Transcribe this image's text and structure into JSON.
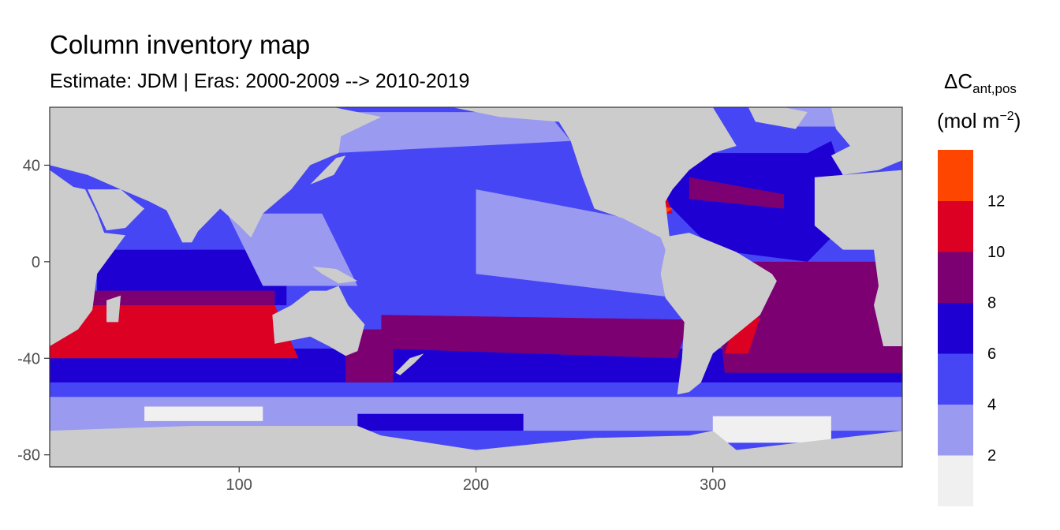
{
  "title": "Column inventory map",
  "subtitle": "Estimate: JDM  | Eras: 2000-2009 --> 2010-2019",
  "colors": {
    "land": "#cccccc",
    "panel_border": "#333333",
    "tick": "#4d4d4d",
    "bins": [
      "#f0f0f0",
      "#9a9af0",
      "#4646f5",
      "#1e00d2",
      "#7d0073",
      "#dc0023",
      "#ff4600"
    ]
  },
  "chart_data": {
    "type": "heatmap",
    "title": "Column inventory map",
    "subtitle": "Estimate: JDM  | Eras: 2000-2009 --> 2010-2019",
    "xlabel": "",
    "ylabel": "",
    "xlim": [
      20,
      380
    ],
    "ylim": [
      -85,
      64
    ],
    "x_ticks": [
      100,
      200,
      300
    ],
    "y_ticks": [
      40,
      0,
      -40,
      -80
    ],
    "legend": {
      "title_main": "ΔC",
      "title_sub": "ant,pos",
      "title_units": "(mol m",
      "title_units_exp": "−2",
      "title_units_close": ")",
      "position": "right",
      "breaks": [
        2,
        4,
        6,
        8,
        10,
        12
      ],
      "bins": [
        {
          "range": [
            0,
            2
          ],
          "color": "#f0f0f0"
        },
        {
          "range": [
            2,
            4
          ],
          "color": "#9a9af0"
        },
        {
          "range": [
            4,
            6
          ],
          "color": "#4646f5"
        },
        {
          "range": [
            6,
            8
          ],
          "color": "#1e00d2"
        },
        {
          "range": [
            8,
            10
          ],
          "color": "#7d0073"
        },
        {
          "range": [
            10,
            12
          ],
          "color": "#dc0023"
        },
        {
          "range": [
            12,
            14
          ],
          "color": "#ff4600"
        }
      ]
    },
    "regions": [
      {
        "name": "southern-ocean-low",
        "bin": 1,
        "pts": [
          [
            20,
            -52
          ],
          [
            380,
            -52
          ],
          [
            380,
            -70
          ],
          [
            20,
            -70
          ]
        ]
      },
      {
        "name": "antarctic-shelf-min",
        "bin": 0,
        "pts": [
          [
            60,
            -60
          ],
          [
            110,
            -60
          ],
          [
            110,
            -66
          ],
          [
            60,
            -66
          ]
        ]
      },
      {
        "name": "weddell-min",
        "bin": 0,
        "pts": [
          [
            300,
            -64
          ],
          [
            350,
            -64
          ],
          [
            350,
            -75
          ],
          [
            300,
            -75
          ]
        ]
      },
      {
        "name": "ross-sea-band",
        "bin": 3,
        "pts": [
          [
            150,
            -63
          ],
          [
            220,
            -63
          ],
          [
            220,
            -70
          ],
          [
            150,
            -70
          ]
        ]
      },
      {
        "name": "southern-ocean-mid",
        "bin": 2,
        "pts": [
          [
            20,
            -42
          ],
          [
            380,
            -42
          ],
          [
            380,
            -56
          ],
          [
            20,
            -56
          ]
        ]
      },
      {
        "name": "acc-band",
        "bin": 3,
        "pts": [
          [
            20,
            -36
          ],
          [
            380,
            -36
          ],
          [
            380,
            -50
          ],
          [
            20,
            -50
          ]
        ]
      },
      {
        "name": "south-pacific-high",
        "bin": 4,
        "pts": [
          [
            160,
            -22
          ],
          [
            290,
            -24
          ],
          [
            285,
            -40
          ],
          [
            160,
            -36
          ]
        ]
      },
      {
        "name": "tasman-high",
        "bin": 4,
        "pts": [
          [
            145,
            -28
          ],
          [
            165,
            -28
          ],
          [
            165,
            -50
          ],
          [
            145,
            -50
          ]
        ]
      },
      {
        "name": "south-atlantic-high",
        "bin": 4,
        "pts": [
          [
            300,
            0
          ],
          [
            380,
            0
          ],
          [
            380,
            -46
          ],
          [
            305,
            -46
          ]
        ]
      },
      {
        "name": "brazil-current-red",
        "bin": 5,
        "pts": [
          [
            310,
            -23
          ],
          [
            320,
            -23
          ],
          [
            315,
            -38
          ],
          [
            305,
            -38
          ]
        ]
      },
      {
        "name": "indian-ocean-deep",
        "bin": 3,
        "pts": [
          [
            40,
            5
          ],
          [
            120,
            5
          ],
          [
            120,
            -18
          ],
          [
            40,
            -18
          ]
        ]
      },
      {
        "name": "arabian-sea",
        "bin": 2,
        "pts": [
          [
            45,
            25
          ],
          [
            80,
            25
          ],
          [
            80,
            5
          ],
          [
            45,
            5
          ]
        ]
      },
      {
        "name": "indian-ocean-purple",
        "bin": 4,
        "pts": [
          [
            20,
            -12
          ],
          [
            115,
            -12
          ],
          [
            115,
            -32
          ],
          [
            20,
            -32
          ]
        ]
      },
      {
        "name": "indian-ocean-red",
        "bin": 5,
        "pts": [
          [
            20,
            -18
          ],
          [
            115,
            -18
          ],
          [
            125,
            -40
          ],
          [
            20,
            -40
          ]
        ]
      },
      {
        "name": "red-sea",
        "bin": 2,
        "pts": [
          [
            32,
            30
          ],
          [
            44,
            15
          ],
          [
            48,
            13
          ],
          [
            36,
            28
          ]
        ]
      },
      {
        "name": "north-pacific-mid",
        "bin": 2,
        "pts": [
          [
            120,
            45
          ],
          [
            240,
            35
          ],
          [
            250,
            20
          ],
          [
            200,
            12
          ],
          [
            130,
            8
          ],
          [
            120,
            25
          ]
        ]
      },
      {
        "name": "north-pacific-subpolar",
        "bin": 1,
        "pts": [
          [
            140,
            62
          ],
          [
            230,
            62
          ],
          [
            240,
            50
          ],
          [
            140,
            45
          ]
        ]
      },
      {
        "name": "east-pacific-low",
        "bin": 1,
        "pts": [
          [
            200,
            30
          ],
          [
            280,
            15
          ],
          [
            285,
            -15
          ],
          [
            200,
            -5
          ]
        ]
      },
      {
        "name": "indonesia",
        "bin": 1,
        "pts": [
          [
            95,
            20
          ],
          [
            135,
            20
          ],
          [
            150,
            -10
          ],
          [
            110,
            -10
          ]
        ]
      },
      {
        "name": "north-atlantic-deep",
        "bin": 3,
        "pts": [
          [
            280,
            45
          ],
          [
            350,
            50
          ],
          [
            360,
            20
          ],
          [
            340,
            0
          ],
          [
            300,
            5
          ],
          [
            280,
            25
          ]
        ]
      },
      {
        "name": "north-atlantic-subpolar",
        "bin": 2,
        "pts": [
          [
            300,
            55
          ],
          [
            340,
            65
          ],
          [
            360,
            55
          ],
          [
            340,
            45
          ],
          [
            300,
            45
          ]
        ]
      },
      {
        "name": "north-atlantic-purple",
        "bin": 4,
        "pts": [
          [
            290,
            35
          ],
          [
            330,
            28
          ],
          [
            330,
            22
          ],
          [
            290,
            26
          ]
        ]
      },
      {
        "name": "gulf-of-mexico",
        "bin": 5,
        "pts": [
          [
            262,
            30
          ],
          [
            280,
            28
          ],
          [
            283,
            20
          ],
          [
            265,
            20
          ]
        ]
      },
      {
        "name": "caribbean-hotspot",
        "bin": 6,
        "pts": [
          [
            274,
            24
          ],
          [
            283,
            22
          ],
          [
            280,
            20
          ],
          [
            273,
            21
          ]
        ]
      },
      {
        "name": "arctic-low",
        "bin": 1,
        "pts": [
          [
            320,
            64
          ],
          [
            380,
            64
          ],
          [
            380,
            56
          ],
          [
            330,
            56
          ]
        ]
      }
    ],
    "land_masses": [
      {
        "name": "north-america",
        "pts": [
          [
            190,
            64
          ],
          [
            210,
            60
          ],
          [
            235,
            58
          ],
          [
            240,
            50
          ],
          [
            245,
            35
          ],
          [
            250,
            22
          ],
          [
            262,
            18
          ],
          [
            278,
            10
          ],
          [
            282,
            8
          ],
          [
            280,
            25
          ],
          [
            283,
            30
          ],
          [
            290,
            38
          ],
          [
            300,
            45
          ],
          [
            310,
            48
          ],
          [
            300,
            64
          ]
        ]
      },
      {
        "name": "greenland",
        "pts": [
          [
            315,
            64
          ],
          [
            330,
            64
          ],
          [
            340,
            62
          ],
          [
            335,
            55
          ],
          [
            318,
            58
          ]
        ]
      },
      {
        "name": "south-america",
        "pts": [
          [
            278,
            10
          ],
          [
            290,
            12
          ],
          [
            300,
            8
          ],
          [
            310,
            4
          ],
          [
            325,
            -5
          ],
          [
            327,
            -8
          ],
          [
            320,
            -22
          ],
          [
            300,
            -38
          ],
          [
            295,
            -50
          ],
          [
            290,
            -54
          ],
          [
            285,
            -55
          ],
          [
            287,
            -40
          ],
          [
            288,
            -25
          ],
          [
            280,
            -15
          ],
          [
            278,
            -5
          ],
          [
            280,
            5
          ]
        ]
      },
      {
        "name": "europe",
        "pts": [
          [
            350,
            64
          ],
          [
            380,
            64
          ],
          [
            380,
            42
          ],
          [
            370,
            38
          ],
          [
            355,
            36
          ],
          [
            350,
            44
          ],
          [
            358,
            48
          ],
          [
            352,
            55
          ]
        ]
      },
      {
        "name": "africa",
        "pts": [
          [
            20,
            38
          ],
          [
            30,
            31
          ],
          [
            35,
            30
          ],
          [
            40,
            20
          ],
          [
            43,
            12
          ],
          [
            52,
            11
          ],
          [
            40,
            -5
          ],
          [
            38,
            -20
          ],
          [
            32,
            -28
          ],
          [
            20,
            -35
          ]
        ]
      },
      {
        "name": "africa-west",
        "pts": [
          [
            343,
            35
          ],
          [
            380,
            38
          ],
          [
            380,
            -35
          ],
          [
            372,
            -35
          ],
          [
            368,
            -18
          ],
          [
            370,
            -10
          ],
          [
            368,
            5
          ],
          [
            355,
            5
          ],
          [
            343,
            15
          ]
        ]
      },
      {
        "name": "arabia",
        "pts": [
          [
            36,
            30
          ],
          [
            50,
            30
          ],
          [
            56,
            25
          ],
          [
            60,
            22
          ],
          [
            52,
            14
          ],
          [
            44,
            13
          ]
        ]
      },
      {
        "name": "asia",
        "pts": [
          [
            20,
            64
          ],
          [
            140,
            64
          ],
          [
            160,
            60
          ],
          [
            143,
            52
          ],
          [
            142,
            45
          ],
          [
            130,
            40
          ],
          [
            122,
            30
          ],
          [
            110,
            20
          ],
          [
            105,
            10
          ],
          [
            100,
            15
          ],
          [
            92,
            22
          ],
          [
            80,
            10
          ],
          [
            72,
            20
          ],
          [
            62,
            25
          ],
          [
            50,
            30
          ],
          [
            36,
            36
          ],
          [
            20,
            40
          ]
        ]
      },
      {
        "name": "india",
        "pts": [
          [
            68,
            24
          ],
          [
            88,
            22
          ],
          [
            80,
            8
          ],
          [
            76,
            8
          ]
        ]
      },
      {
        "name": "japan",
        "pts": [
          [
            130,
            32
          ],
          [
            140,
            36
          ],
          [
            145,
            44
          ],
          [
            141,
            43
          ],
          [
            132,
            34
          ]
        ]
      },
      {
        "name": "australia",
        "pts": [
          [
            114,
            -22
          ],
          [
            122,
            -18
          ],
          [
            130,
            -12
          ],
          [
            137,
            -12
          ],
          [
            142,
            -10
          ],
          [
            146,
            -18
          ],
          [
            153,
            -26
          ],
          [
            150,
            -37
          ],
          [
            145,
            -39
          ],
          [
            138,
            -35
          ],
          [
            130,
            -31
          ],
          [
            115,
            -34
          ]
        ]
      },
      {
        "name": "madagascar",
        "pts": [
          [
            44,
            -16
          ],
          [
            50,
            -14
          ],
          [
            49,
            -25
          ],
          [
            44,
            -25
          ]
        ]
      },
      {
        "name": "new-zealand",
        "pts": [
          [
            166,
            -46
          ],
          [
            172,
            -40
          ],
          [
            178,
            -38
          ],
          [
            174,
            -42
          ],
          [
            168,
            -47
          ]
        ]
      },
      {
        "name": "new-guinea",
        "pts": [
          [
            131,
            -2
          ],
          [
            141,
            -3
          ],
          [
            150,
            -8
          ],
          [
            142,
            -9
          ],
          [
            135,
            -5
          ]
        ]
      },
      {
        "name": "antarctica",
        "pts": [
          [
            20,
            -70
          ],
          [
            80,
            -68
          ],
          [
            150,
            -68
          ],
          [
            160,
            -72
          ],
          [
            200,
            -78
          ],
          [
            250,
            -73
          ],
          [
            290,
            -72
          ],
          [
            300,
            -70
          ],
          [
            310,
            -78
          ],
          [
            380,
            -70
          ],
          [
            380,
            -85
          ],
          [
            20,
            -85
          ]
        ]
      }
    ]
  }
}
